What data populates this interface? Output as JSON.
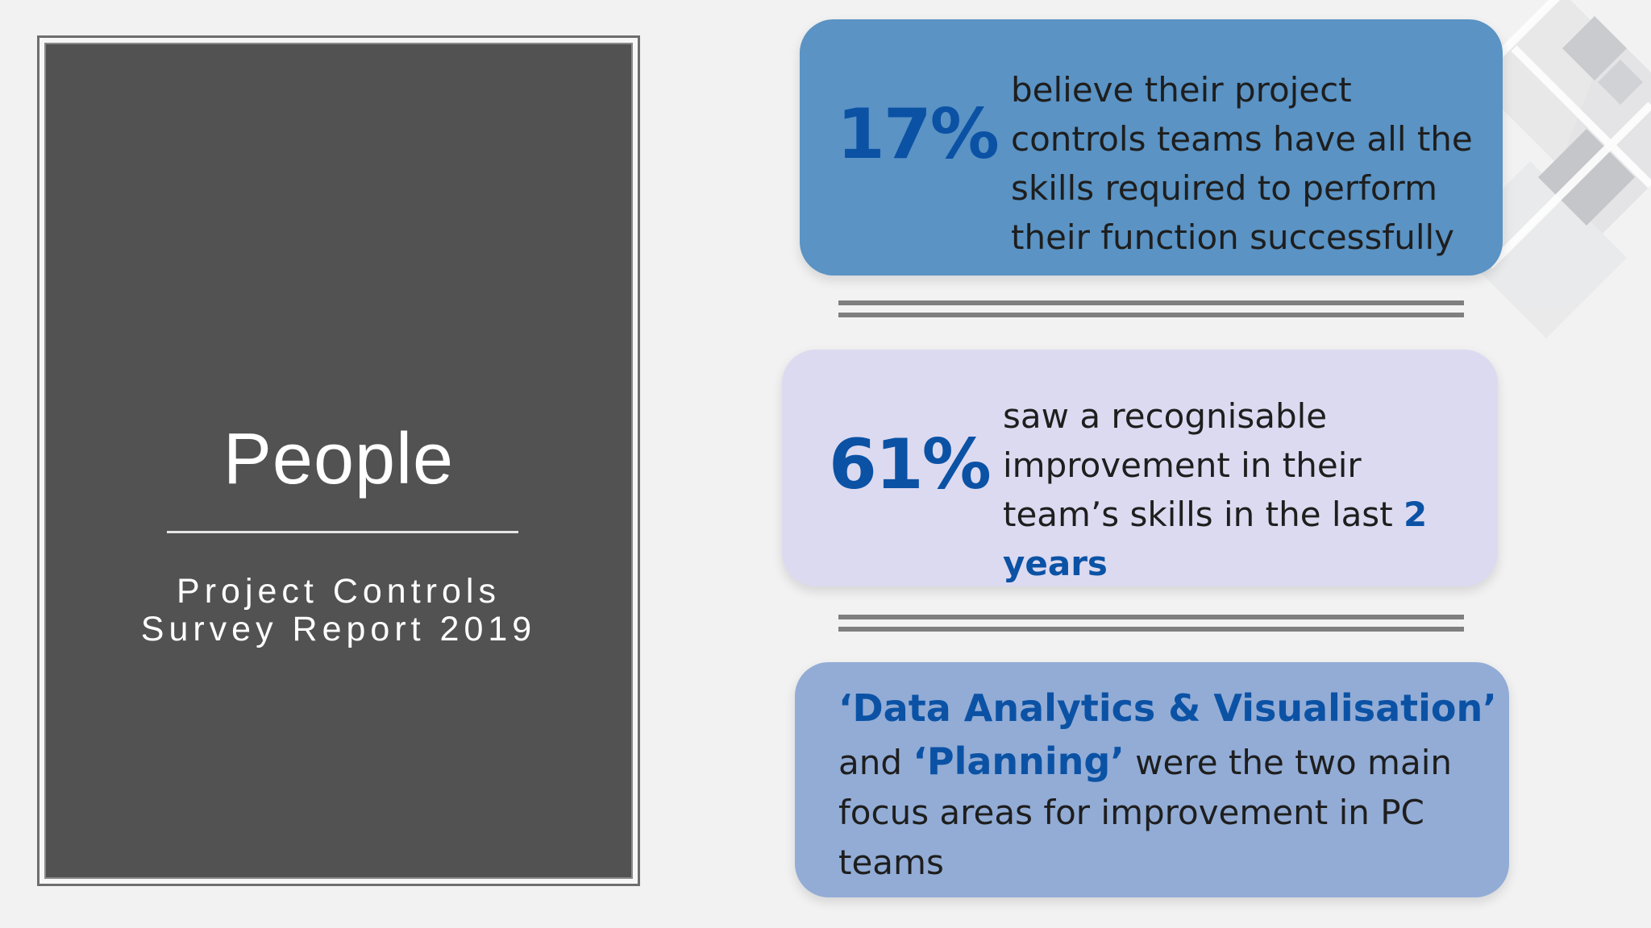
{
  "title_panel": {
    "title": "People",
    "subtitle_line1": "Project Controls",
    "subtitle_line2": "Survey Report 2019"
  },
  "stats": [
    {
      "value": "17%",
      "text": "believe their project controls teams have all the skills required to perform their function successfully"
    },
    {
      "value": "61%",
      "text_before": "saw a recognisable improvement in their team’s skills in the last",
      "highlight": "2 years"
    }
  ],
  "focus": {
    "headline": "‘Data Analytics & Visualisation’",
    "body_before": "and",
    "highlight": "‘Planning’",
    "body_after": "were the two main focus areas for improvement in PC teams"
  },
  "colors": {
    "accent_blue": "#0b52a5",
    "card1_bg": "#5a93c4",
    "card2_bg": "#dcdaf0",
    "card3_bg": "#92acd6",
    "title_panel_bg": "#525252",
    "divider": "#7f7f7f"
  },
  "decorations": {
    "top_right": "diamond-lattice-pattern"
  }
}
